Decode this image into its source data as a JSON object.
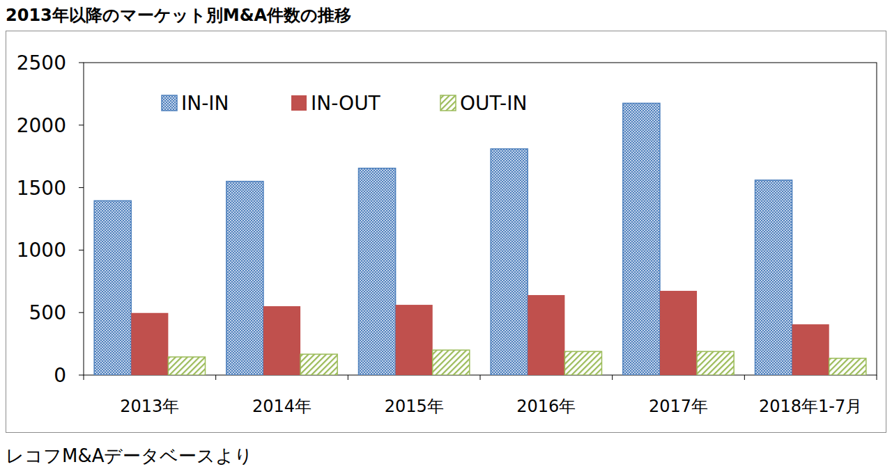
{
  "chart_data": {
    "type": "bar",
    "title": "2013年以降のマーケット別M&A件数の推移",
    "annotations": [
      "レコフM&Aデータベースより"
    ],
    "categories": [
      "2013年",
      "2014年",
      "2015年",
      "2016年",
      "2017年",
      "2018年1-7月"
    ],
    "series": [
      {
        "name": "IN-IN",
        "color": "#4f81bd",
        "values": [
          1395,
          1550,
          1655,
          1810,
          2175,
          1560
        ]
      },
      {
        "name": "IN-OUT",
        "color": "#c0504d",
        "values": [
          497,
          551,
          562,
          640,
          674,
          406
        ]
      },
      {
        "name": "OUT-IN",
        "color": "#9bbb59",
        "values": [
          145,
          167,
          200,
          189,
          189,
          134
        ]
      }
    ],
    "ylim": [
      0,
      2500
    ],
    "yticks": [
      0,
      500,
      1000,
      1500,
      2000,
      2500
    ],
    "grid": false,
    "legend": "top"
  }
}
